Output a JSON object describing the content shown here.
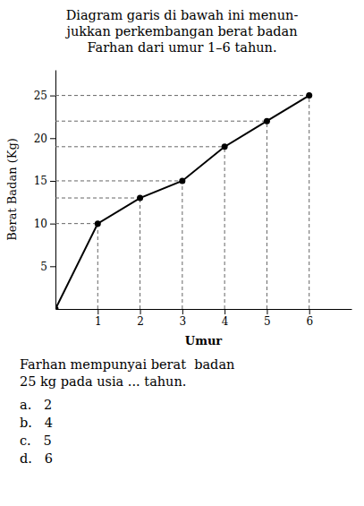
{
  "chart_data": {
    "type": "line",
    "title": [
      "Diagram garis di bawah ini menun-",
      "jukkan perkembangan berat badan",
      "Farhan dari umur 1–6 tahun."
    ],
    "xlabel": "Umur",
    "ylabel": "Berat Badan (Kg)",
    "x": [
      0,
      1,
      2,
      3,
      4,
      5,
      6
    ],
    "values": [
      0,
      10,
      13,
      15,
      19,
      22,
      25
    ],
    "color": "#000000",
    "marker": "circle",
    "xlim": [
      0,
      7
    ],
    "xticks": [
      1,
      2,
      3,
      4,
      5,
      6
    ],
    "ylim": [
      0,
      28
    ],
    "yticks": [
      5,
      10,
      15,
      20,
      25
    ],
    "annotations": [
      "Farhan mempunyai berat  badan",
      "25 kg pada usia ... tahun.",
      "a.   2",
      "b.   4",
      "c.   5",
      "d.   6"
    ]
  }
}
